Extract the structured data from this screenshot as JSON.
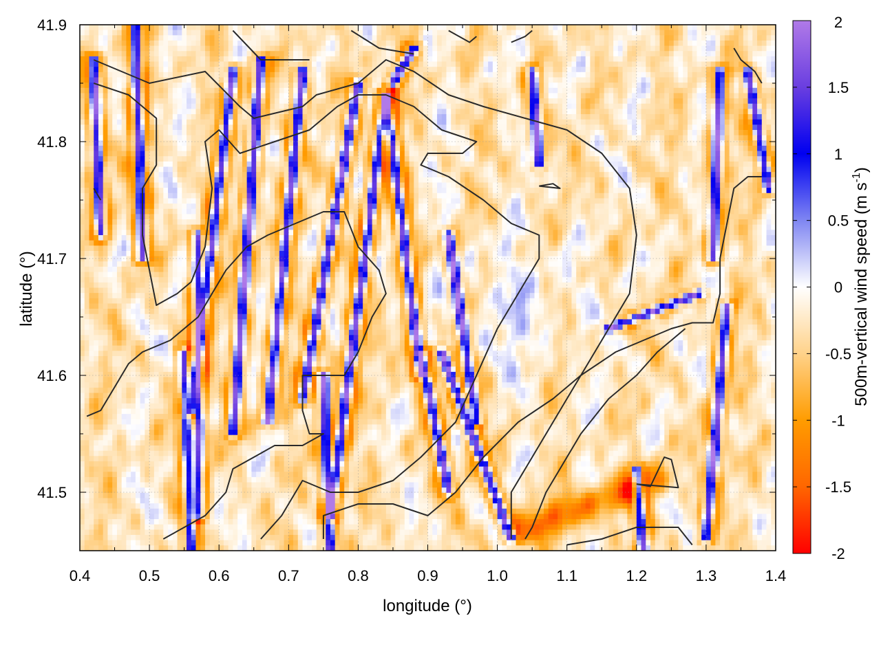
{
  "chart_data": {
    "type": "heatmap",
    "title": "",
    "xlabel": "longitude (°)",
    "ylabel": "latitude (°)",
    "colorbar_label_main": "500m-vertical wind speed (m s",
    "colorbar_label_sup": "-1",
    "colorbar_label_close": ")",
    "xlim": [
      0.4,
      1.4
    ],
    "ylim": [
      41.45,
      41.9
    ],
    "x_ticks": [
      0.4,
      0.5,
      0.6,
      0.7,
      0.8,
      0.9,
      1.0,
      1.1,
      1.2,
      1.3,
      1.4
    ],
    "x_tick_labels": [
      "0.4",
      "0.5",
      "0.6",
      "0.7",
      "0.8",
      "0.9",
      "1.0",
      "1.1",
      "1.2",
      "1.3",
      "1.4"
    ],
    "y_ticks": [
      41.5,
      41.6,
      41.7,
      41.8,
      41.9
    ],
    "y_tick_labels": [
      "41.5",
      "41.6",
      "41.7",
      "41.8",
      "41.9"
    ],
    "colorbar_range": [
      -2,
      2
    ],
    "colorbar_ticks": [
      2,
      1.5,
      1,
      0.5,
      0,
      -0.5,
      -1,
      -1.5,
      -2
    ],
    "colorbar_tick_labels": [
      "2",
      "1.5",
      "1",
      "0.5",
      "0",
      "-0.5",
      "-1",
      "-1.5",
      "-2"
    ],
    "colormap": [
      {
        "value": 2.0,
        "color": "#b07ae8"
      },
      {
        "value": 1.5,
        "color": "#6a3ee0"
      },
      {
        "value": 1.0,
        "color": "#0000f0"
      },
      {
        "value": 0.5,
        "color": "#7f86f2"
      },
      {
        "value": 0.0,
        "color": "#ffffff"
      },
      {
        "value": -0.5,
        "color": "#ffd28a"
      },
      {
        "value": -1.0,
        "color": "#ff9c00"
      },
      {
        "value": -1.5,
        "color": "#ff6600"
      },
      {
        "value": -2.0,
        "color": "#ff0000"
      }
    ],
    "grid": true,
    "contour_color": "#2a2a2a",
    "contours": [
      [
        [
          0.42,
          41.87
        ],
        [
          0.5,
          41.85
        ],
        [
          0.58,
          41.86
        ],
        [
          0.63,
          41.83
        ],
        [
          0.65,
          41.82
        ],
        [
          0.72,
          41.83
        ],
        [
          0.74,
          41.84
        ],
        [
          0.8,
          41.85
        ],
        [
          0.84,
          41.87
        ],
        [
          0.88,
          41.86
        ],
        [
          0.93,
          41.84
        ],
        [
          0.98,
          41.83
        ],
        [
          1.04,
          41.82
        ],
        [
          1.1,
          41.81
        ],
        [
          1.15,
          41.79
        ],
        [
          1.19,
          41.76
        ],
        [
          1.2,
          41.72
        ],
        [
          1.19,
          41.67
        ],
        [
          1.15,
          41.63
        ],
        [
          1.1,
          41.58
        ],
        [
          1.05,
          41.53
        ],
        [
          1.02,
          41.5
        ],
        [
          1.02,
          41.46
        ]
      ],
      [
        [
          0.42,
          41.85
        ],
        [
          0.47,
          41.84
        ],
        [
          0.51,
          41.82
        ],
        [
          0.51,
          41.78
        ],
        [
          0.49,
          41.76
        ],
        [
          0.49,
          41.72
        ],
        [
          0.5,
          41.69
        ],
        [
          0.51,
          41.66
        ],
        [
          0.54,
          41.67
        ],
        [
          0.56,
          41.68
        ],
        [
          0.58,
          41.71
        ],
        [
          0.59,
          41.76
        ],
        [
          0.58,
          41.8
        ],
        [
          0.6,
          41.81
        ],
        [
          0.63,
          41.79
        ],
        [
          0.68,
          41.8
        ],
        [
          0.73,
          41.81
        ],
        [
          0.77,
          41.83
        ],
        [
          0.8,
          41.84
        ],
        [
          0.84,
          41.84
        ],
        [
          0.88,
          41.83
        ],
        [
          0.92,
          41.81
        ],
        [
          0.97,
          41.8
        ],
        [
          0.95,
          41.79
        ],
        [
          0.9,
          41.79
        ],
        [
          0.89,
          41.78
        ],
        [
          0.93,
          41.77
        ],
        [
          0.98,
          41.75
        ],
        [
          1.02,
          41.73
        ],
        [
          1.06,
          41.72
        ],
        [
          1.06,
          41.7
        ],
        [
          1.03,
          41.67
        ],
        [
          1.0,
          41.64
        ],
        [
          0.97,
          41.6
        ],
        [
          0.94,
          41.56
        ],
        [
          0.89,
          41.53
        ],
        [
          0.85,
          41.51
        ],
        [
          0.8,
          41.5
        ],
        [
          0.76,
          41.5
        ],
        [
          0.72,
          41.51
        ],
        [
          0.69,
          41.48
        ],
        [
          0.66,
          41.46
        ]
      ],
      [
        [
          0.41,
          41.565
        ],
        [
          0.43,
          41.57
        ],
        [
          0.45,
          41.59
        ],
        [
          0.47,
          41.61
        ],
        [
          0.49,
          41.62
        ],
        [
          0.53,
          41.63
        ],
        [
          0.57,
          41.65
        ],
        [
          0.59,
          41.67
        ],
        [
          0.61,
          41.69
        ],
        [
          0.64,
          41.71
        ],
        [
          0.67,
          41.72
        ],
        [
          0.71,
          41.73
        ],
        [
          0.75,
          41.74
        ],
        [
          0.78,
          41.74
        ],
        [
          0.8,
          41.71
        ],
        [
          0.83,
          41.69
        ],
        [
          0.84,
          41.67
        ],
        [
          0.82,
          41.65
        ],
        [
          0.8,
          41.62
        ],
        [
          0.78,
          41.6
        ],
        [
          0.75,
          41.6
        ],
        [
          0.72,
          41.6
        ],
        [
          0.72,
          41.57
        ],
        [
          0.73,
          41.55
        ],
        [
          0.75,
          41.55
        ],
        [
          0.72,
          41.54
        ],
        [
          0.68,
          41.54
        ],
        [
          0.65,
          41.53
        ],
        [
          0.62,
          41.52
        ],
        [
          0.61,
          41.5
        ],
        [
          0.58,
          41.48
        ],
        [
          0.55,
          41.47
        ],
        [
          0.52,
          41.46
        ]
      ],
      [
        [
          0.75,
          41.46
        ],
        [
          0.75,
          41.48
        ],
        [
          0.8,
          41.49
        ],
        [
          0.85,
          41.49
        ],
        [
          0.9,
          41.48
        ],
        [
          0.94,
          41.5
        ],
        [
          0.98,
          41.53
        ],
        [
          1.03,
          41.56
        ],
        [
          1.08,
          41.58
        ],
        [
          1.12,
          41.6
        ],
        [
          1.17,
          41.62
        ],
        [
          1.21,
          41.63
        ],
        [
          1.25,
          41.64
        ],
        [
          1.28,
          41.645
        ],
        [
          1.31,
          41.645
        ],
        [
          1.32,
          41.67
        ],
        [
          1.32,
          41.7
        ],
        [
          1.33,
          41.73
        ],
        [
          1.34,
          41.76
        ],
        [
          1.36,
          41.77
        ],
        [
          1.38,
          41.77
        ]
      ],
      [
        [
          1.04,
          41.46
        ],
        [
          1.05,
          41.47
        ],
        [
          1.07,
          41.5
        ],
        [
          1.09,
          41.52
        ],
        [
          1.12,
          41.55
        ],
        [
          1.16,
          41.58
        ],
        [
          1.2,
          41.6
        ],
        [
          1.23,
          41.62
        ],
        [
          1.25,
          41.63
        ],
        [
          1.27,
          41.64
        ]
      ],
      [
        [
          1.2,
          41.507
        ],
        [
          1.22,
          41.505
        ],
        [
          1.24,
          41.53
        ],
        [
          1.25,
          41.528
        ],
        [
          1.26,
          41.504
        ],
        [
          1.2,
          41.507
        ]
      ],
      [
        [
          1.06,
          41.762
        ],
        [
          1.08,
          41.764
        ],
        [
          1.09,
          41.76
        ],
        [
          1.06,
          41.762
        ]
      ],
      [
        [
          0.62,
          41.895
        ],
        [
          0.66,
          41.87
        ],
        [
          0.71,
          41.87
        ],
        [
          0.73,
          41.87
        ]
      ],
      [
        [
          0.79,
          41.895
        ],
        [
          0.83,
          41.88
        ],
        [
          0.88,
          41.875
        ]
      ],
      [
        [
          0.93,
          41.895
        ],
        [
          0.96,
          41.885
        ],
        [
          0.97,
          41.89
        ]
      ],
      [
        [
          1.02,
          41.885
        ],
        [
          1.04,
          41.89
        ],
        [
          1.05,
          41.895
        ]
      ],
      [
        [
          1.34,
          41.88
        ],
        [
          1.35,
          41.87
        ],
        [
          1.37,
          41.86
        ],
        [
          1.38,
          41.85
        ]
      ],
      [
        [
          0.42,
          41.76
        ],
        [
          0.43,
          41.75
        ]
      ],
      [
        [
          1.1,
          41.455
        ],
        [
          1.15,
          41.46
        ],
        [
          1.2,
          41.47
        ],
        [
          1.26,
          41.47
        ],
        [
          1.28,
          41.455
        ]
      ]
    ]
  }
}
